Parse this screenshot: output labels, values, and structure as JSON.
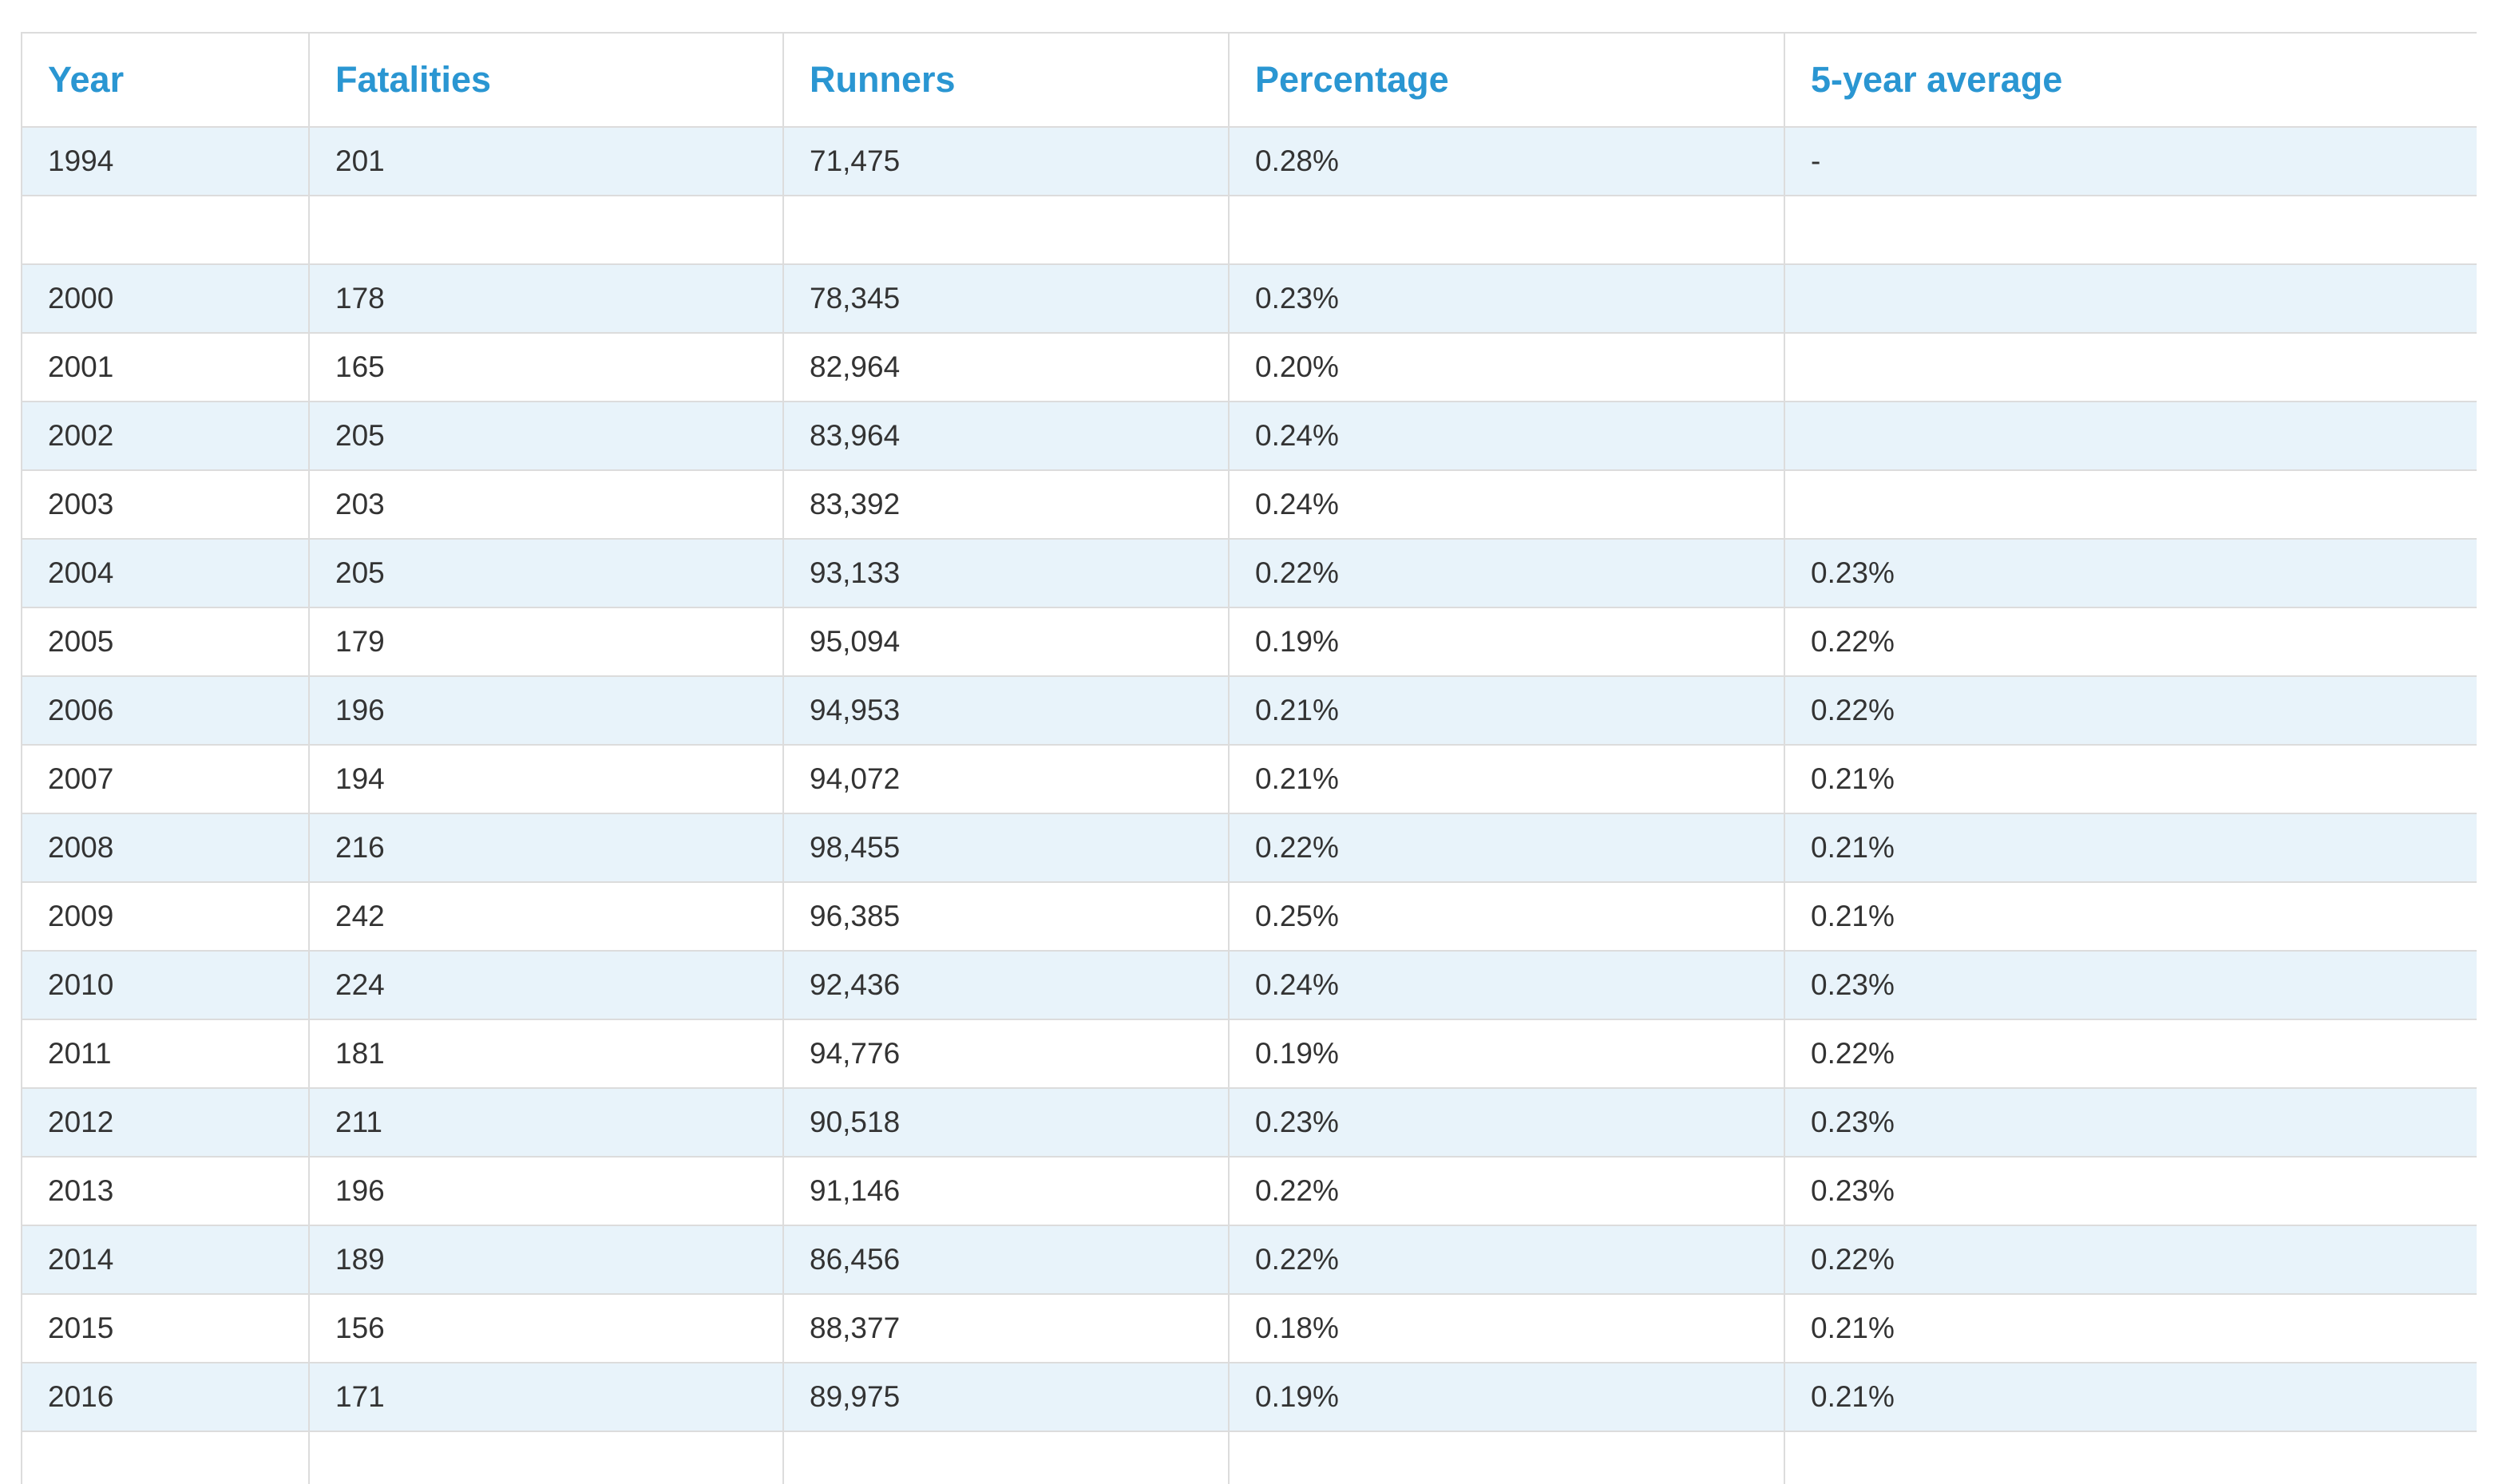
{
  "table": {
    "headers": [
      "Year",
      "Fatalities",
      "Runners",
      "Percentage",
      "5-year average"
    ],
    "rows": [
      [
        "1994",
        "201",
        "71,475",
        "0.28%",
        "-"
      ],
      [
        "",
        "",
        "",
        "",
        ""
      ],
      [
        "2000",
        "178",
        "78,345",
        "0.23%",
        ""
      ],
      [
        "2001",
        "165",
        "82,964",
        "0.20%",
        ""
      ],
      [
        "2002",
        "205",
        "83,964",
        "0.24%",
        ""
      ],
      [
        "2003",
        "203",
        "83,392",
        "0.24%",
        ""
      ],
      [
        "2004",
        "205",
        "93,133",
        "0.22%",
        "0.23%"
      ],
      [
        "2005",
        "179",
        "95,094",
        "0.19%",
        "0.22%"
      ],
      [
        "2006",
        "196",
        "94,953",
        "0.21%",
        "0.22%"
      ],
      [
        "2007",
        "194",
        "94,072",
        "0.21%",
        "0.21%"
      ],
      [
        "2008",
        "216",
        "98,455",
        "0.22%",
        "0.21%"
      ],
      [
        "2009",
        "242",
        "96,385",
        "0.25%",
        "0.21%"
      ],
      [
        "2010",
        "224",
        "92,436",
        "0.24%",
        "0.23%"
      ],
      [
        "2011",
        "181",
        "94,776",
        "0.19%",
        "0.22%"
      ],
      [
        "2012",
        "211",
        "90,518",
        "0.23%",
        "0.23%"
      ],
      [
        "2013",
        "196",
        "91,146",
        "0.22%",
        "0.23%"
      ],
      [
        "2014",
        "189",
        "86,456",
        "0.22%",
        "0.22%"
      ],
      [
        "2015",
        "156",
        "88,377",
        "0.18%",
        "0.21%"
      ],
      [
        "2016",
        "171",
        "89,975",
        "0.19%",
        "0.21%"
      ],
      [
        "",
        "",
        "",
        "",
        ""
      ]
    ]
  },
  "colors": {
    "header_text": "#2a96d2",
    "cell_text": "#333333",
    "stripe": "#e8f3fa",
    "border": "#dcdcdc"
  }
}
